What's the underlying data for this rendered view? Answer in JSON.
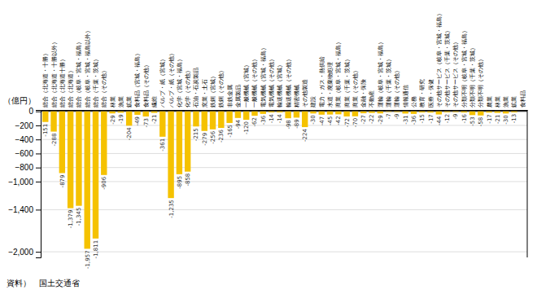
{
  "chart_data": {
    "type": "bar",
    "y_label": "（億円）",
    "source": "資料）　国土交通省",
    "color": "#f5c200",
    "grid": true,
    "data_labels": true,
    "categories": [
      "総合（北海道・十勝）",
      "総合（北海道・十勝以外）",
      "総合（北海道十勝）",
      "総合（北海道）",
      "総合（岐阜・宮城・福島）",
      "総合（岐阜・宮城・福島以外）",
      "総合（千葉・茨城）",
      "総合（その他）",
      "林業",
      "漁業",
      "鉱業",
      "食料品（宮城・福島）",
      "食料品（その他）",
      "繊維",
      "パルプ・紙（宮城）",
      "パルプ・紙（その他）",
      "化学（宮城・福島）",
      "化学（その他）",
      "石油・石炭製品",
      "窯業・土石",
      "鉄鋼（宮城）",
      "鉄鋼（その他）",
      "非鉄金属",
      "金属製品",
      "一般機械（宮城）",
      "一般機械（その他）",
      "電気機械（宮城・福島）",
      "電気機械（その他）",
      "輸送機械（宮城）",
      "輸送機械（その他）",
      "精密機械",
      "その他製造",
      "建設",
      "電力・ガス・熱供給",
      "水道・廃棄物処理",
      "商業（岐阜・宮城・福島）",
      "商業（千葉・茨城）",
      "商業（その他）",
      "金融・保険",
      "不動産",
      "運輸（岐阜・宮城・福島）",
      "運輸（千葉・茨城）",
      "運輸（その他）",
      "情報通信",
      "公務",
      "教育・研究",
      "医療・保健",
      "その他サービス（岐阜・宮城・福島）",
      "その他サービス（千葉・茨城）",
      "その他サービス（その他）",
      "分類不明（岐阜・宮城・福島）",
      "分類不明（千葉・茨城）",
      "分類不明（その他）",
      "農業",
      "林業",
      "漁業",
      "鉱業",
      "食料品"
    ],
    "values": [
      -151,
      -288,
      -879,
      -1379,
      -1345,
      -1957,
      -1811,
      -906,
      -29,
      -19,
      -204,
      -49,
      -73,
      -21,
      -361,
      -1235,
      -895,
      -858,
      -215,
      -279,
      -256,
      -236,
      -165,
      -94,
      -120,
      -62,
      -36,
      -14,
      -14,
      -98,
      -89,
      -224,
      -30,
      -47,
      -45,
      -42,
      -72,
      -70,
      -27,
      -22,
      -29,
      -7,
      -9,
      -31,
      -36,
      -15,
      -17,
      -44,
      -12,
      -9,
      -16,
      -53,
      -58,
      -17,
      -21,
      -30,
      -13,
      null
    ],
    "value_labels": [
      "-151",
      "-288",
      "-879",
      "-1,379",
      "-1,345",
      "-1,957",
      "-1,811",
      "-906",
      "-29",
      "-19",
      "-204",
      "-49",
      "-73",
      "-21",
      "-361",
      "-1,235",
      "-895",
      "-858",
      "-215",
      "-279",
      "-256",
      "-236",
      "-165",
      "-94",
      "-120",
      "-62",
      "-36",
      "-14",
      "-14",
      "-98",
      "-89",
      "-224",
      "-30",
      "-47",
      "-45",
      "-42",
      "-72",
      "-70",
      "-27",
      "-22",
      "-29",
      "-7",
      "-9",
      "-31",
      "-36",
      "-15",
      "-17",
      "-44",
      "-12",
      "-9",
      "-16",
      "-53",
      "-58",
      "-17",
      "-21",
      "-30",
      "-13",
      null
    ],
    "ylim": [
      -2080,
      20
    ],
    "yticks": [
      0,
      {
        "value": -200,
        "label": "−200"
      },
      {
        "value": -400,
        "label": "−400"
      },
      {
        "value": -600,
        "label": "−600"
      },
      {
        "value": -800,
        "label": "−800"
      },
      {
        "value": -1000,
        "label": "−1,000"
      },
      {
        "value": -1400,
        "label": "−1,400"
      },
      {
        "value": -2000,
        "label": "−2,000"
      }
    ]
  }
}
